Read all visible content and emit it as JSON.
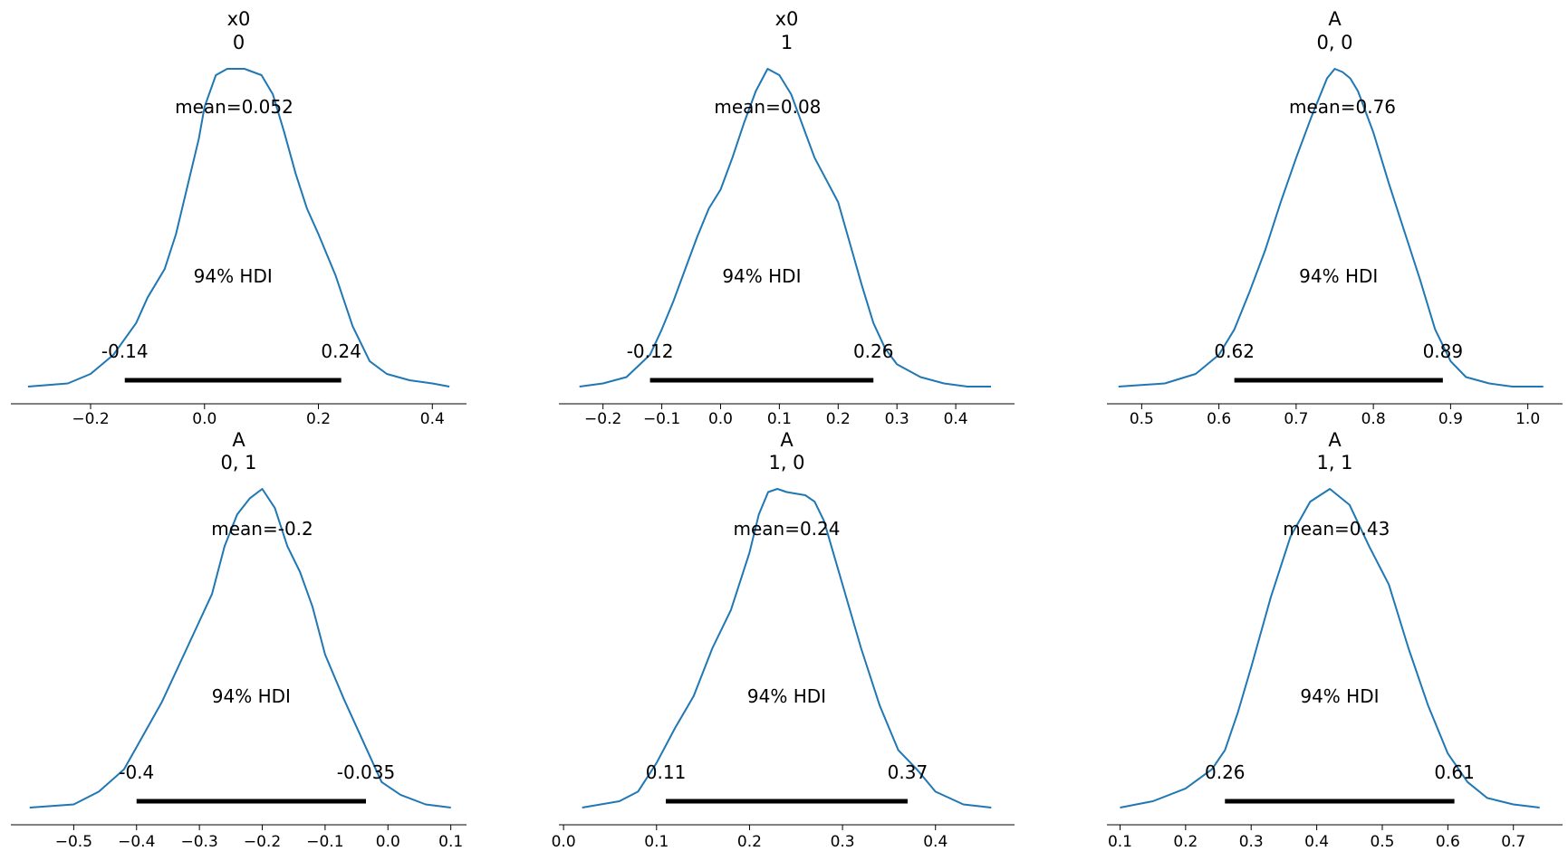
{
  "chart_data": [
    {
      "type": "area",
      "title_lines": [
        "x0",
        "0"
      ],
      "mean_label": "mean=0.052",
      "mean": 0.052,
      "hdi_label": "94% HDI",
      "hdi": [
        -0.14,
        0.24
      ],
      "hdi_labels": [
        "-0.14",
        "0.24"
      ],
      "xlim": [
        -0.34,
        0.46
      ],
      "xticks": [
        -0.2,
        0.0,
        0.2,
        0.4
      ],
      "xtick_labels": [
        "−0.2",
        "0.0",
        "0.2",
        "0.4"
      ],
      "density_x": [
        -0.31,
        -0.24,
        -0.2,
        -0.16,
        -0.12,
        -0.1,
        -0.07,
        -0.05,
        -0.03,
        -0.01,
        0.0,
        0.02,
        0.04,
        0.07,
        0.1,
        0.12,
        0.14,
        0.16,
        0.18,
        0.2,
        0.23,
        0.26,
        0.29,
        0.32,
        0.36,
        0.4,
        0.43
      ],
      "density_y": [
        0.0,
        0.01,
        0.04,
        0.1,
        0.2,
        0.28,
        0.37,
        0.48,
        0.63,
        0.78,
        0.88,
        0.98,
        1.0,
        1.0,
        0.98,
        0.92,
        0.8,
        0.67,
        0.56,
        0.48,
        0.35,
        0.19,
        0.08,
        0.04,
        0.02,
        0.01,
        0.0
      ]
    },
    {
      "type": "area",
      "title_lines": [
        "x0",
        "1"
      ],
      "mean_label": "mean=0.08",
      "mean": 0.08,
      "hdi_label": "94% HDI",
      "hdi": [
        -0.12,
        0.26
      ],
      "hdi_labels": [
        "-0.12",
        "0.26"
      ],
      "xlim": [
        -0.275,
        0.5
      ],
      "xticks": [
        -0.2,
        -0.1,
        0.0,
        0.1,
        0.2,
        0.3,
        0.4
      ],
      "xtick_labels": [
        "−0.2",
        "−0.1",
        "0.0",
        "0.1",
        "0.2",
        "0.3",
        "0.4"
      ],
      "density_x": [
        -0.24,
        -0.2,
        -0.16,
        -0.12,
        -0.1,
        -0.08,
        -0.06,
        -0.04,
        -0.02,
        0.0,
        0.02,
        0.04,
        0.06,
        0.08,
        0.1,
        0.12,
        0.14,
        0.16,
        0.18,
        0.2,
        0.22,
        0.24,
        0.26,
        0.28,
        0.3,
        0.34,
        0.38,
        0.42,
        0.46
      ],
      "density_y": [
        0.0,
        0.01,
        0.03,
        0.1,
        0.18,
        0.27,
        0.37,
        0.47,
        0.56,
        0.62,
        0.72,
        0.83,
        0.93,
        1.0,
        0.98,
        0.92,
        0.82,
        0.72,
        0.65,
        0.58,
        0.45,
        0.32,
        0.2,
        0.12,
        0.07,
        0.03,
        0.01,
        0.0,
        0.0
      ]
    },
    {
      "type": "area",
      "title_lines": [
        "A",
        "0, 0"
      ],
      "mean_label": "mean=0.76",
      "mean": 0.76,
      "hdi_label": "94% HDI",
      "hdi": [
        0.62,
        0.89
      ],
      "hdi_labels": [
        "0.62",
        "0.89"
      ],
      "xlim": [
        0.455,
        1.045
      ],
      "xticks": [
        0.5,
        0.6,
        0.7,
        0.8,
        0.9,
        1.0
      ],
      "xtick_labels": [
        "0.5",
        "0.6",
        "0.7",
        "0.8",
        "0.9",
        "1.0"
      ],
      "density_x": [
        0.47,
        0.53,
        0.57,
        0.6,
        0.62,
        0.64,
        0.66,
        0.68,
        0.7,
        0.72,
        0.74,
        0.75,
        0.76,
        0.77,
        0.78,
        0.8,
        0.82,
        0.84,
        0.86,
        0.88,
        0.9,
        0.92,
        0.95,
        0.98,
        1.02
      ],
      "density_y": [
        0.0,
        0.01,
        0.04,
        0.1,
        0.18,
        0.3,
        0.43,
        0.58,
        0.72,
        0.85,
        0.97,
        1.0,
        0.99,
        0.97,
        0.93,
        0.8,
        0.64,
        0.49,
        0.34,
        0.18,
        0.08,
        0.03,
        0.01,
        0.0,
        0.0
      ]
    },
    {
      "type": "area",
      "title_lines": [
        "A",
        "0, 1"
      ],
      "mean_label": "mean=-0.2",
      "mean": -0.2,
      "hdi_label": "94% HDI",
      "hdi": [
        -0.4,
        -0.035
      ],
      "hdi_labels": [
        "-0.4",
        "-0.035"
      ],
      "xlim": [
        -0.6,
        0.125
      ],
      "xticks": [
        -0.5,
        -0.4,
        -0.3,
        -0.2,
        -0.1,
        0.0,
        0.1
      ],
      "xtick_labels": [
        "−0.5",
        "−0.4",
        "−0.3",
        "−0.2",
        "−0.1",
        "0.0",
        "0.1"
      ],
      "density_x": [
        -0.57,
        -0.5,
        -0.46,
        -0.42,
        -0.4,
        -0.36,
        -0.32,
        -0.28,
        -0.26,
        -0.24,
        -0.22,
        -0.2,
        -0.18,
        -0.16,
        -0.14,
        -0.12,
        -0.1,
        -0.07,
        -0.04,
        -0.01,
        0.02,
        0.06,
        0.1
      ],
      "density_y": [
        0.0,
        0.01,
        0.05,
        0.12,
        0.19,
        0.33,
        0.5,
        0.67,
        0.82,
        0.92,
        0.97,
        1.0,
        0.94,
        0.82,
        0.74,
        0.63,
        0.48,
        0.34,
        0.21,
        0.08,
        0.04,
        0.01,
        0.0
      ]
    },
    {
      "type": "area",
      "title_lines": [
        "A",
        "1, 0"
      ],
      "mean_label": "mean=0.24",
      "mean": 0.24,
      "hdi_label": "94% HDI",
      "hdi": [
        0.11,
        0.37
      ],
      "hdi_labels": [
        "0.11",
        "0.37"
      ],
      "xlim": [
        -0.005,
        0.485
      ],
      "xticks": [
        0.0,
        0.1,
        0.2,
        0.3,
        0.4
      ],
      "xtick_labels": [
        "0.0",
        "0.1",
        "0.2",
        "0.3",
        "0.4"
      ],
      "density_x": [
        0.02,
        0.06,
        0.08,
        0.1,
        0.12,
        0.14,
        0.16,
        0.18,
        0.2,
        0.21,
        0.22,
        0.23,
        0.24,
        0.26,
        0.27,
        0.28,
        0.3,
        0.32,
        0.34,
        0.36,
        0.38,
        0.4,
        0.43,
        0.46
      ],
      "density_y": [
        0.0,
        0.02,
        0.05,
        0.14,
        0.25,
        0.35,
        0.5,
        0.62,
        0.8,
        0.92,
        0.99,
        1.0,
        0.99,
        0.98,
        0.96,
        0.9,
        0.7,
        0.5,
        0.32,
        0.18,
        0.12,
        0.05,
        0.01,
        0.0
      ]
    },
    {
      "type": "area",
      "title_lines": [
        "A",
        "1, 1"
      ],
      "mean_label": "mean=0.43",
      "mean": 0.43,
      "hdi_label": "94% HDI",
      "hdi": [
        0.26,
        0.61
      ],
      "hdi_labels": [
        "0.26",
        "0.61"
      ],
      "xlim": [
        0.08,
        0.775
      ],
      "xticks": [
        0.1,
        0.2,
        0.3,
        0.4,
        0.5,
        0.6,
        0.7
      ],
      "xtick_labels": [
        "0.1",
        "0.2",
        "0.3",
        "0.4",
        "0.5",
        "0.6",
        "0.7"
      ],
      "density_x": [
        0.1,
        0.15,
        0.2,
        0.24,
        0.26,
        0.28,
        0.3,
        0.33,
        0.36,
        0.39,
        0.42,
        0.45,
        0.48,
        0.51,
        0.54,
        0.57,
        0.6,
        0.63,
        0.66,
        0.7,
        0.74
      ],
      "density_y": [
        0.0,
        0.02,
        0.06,
        0.12,
        0.18,
        0.3,
        0.44,
        0.66,
        0.85,
        0.96,
        1.0,
        0.95,
        0.82,
        0.7,
        0.5,
        0.32,
        0.17,
        0.08,
        0.03,
        0.01,
        0.0
      ]
    }
  ],
  "colors": {
    "density": "#1f77b4",
    "hdi_bar": "#000000",
    "axis": "#000000"
  }
}
